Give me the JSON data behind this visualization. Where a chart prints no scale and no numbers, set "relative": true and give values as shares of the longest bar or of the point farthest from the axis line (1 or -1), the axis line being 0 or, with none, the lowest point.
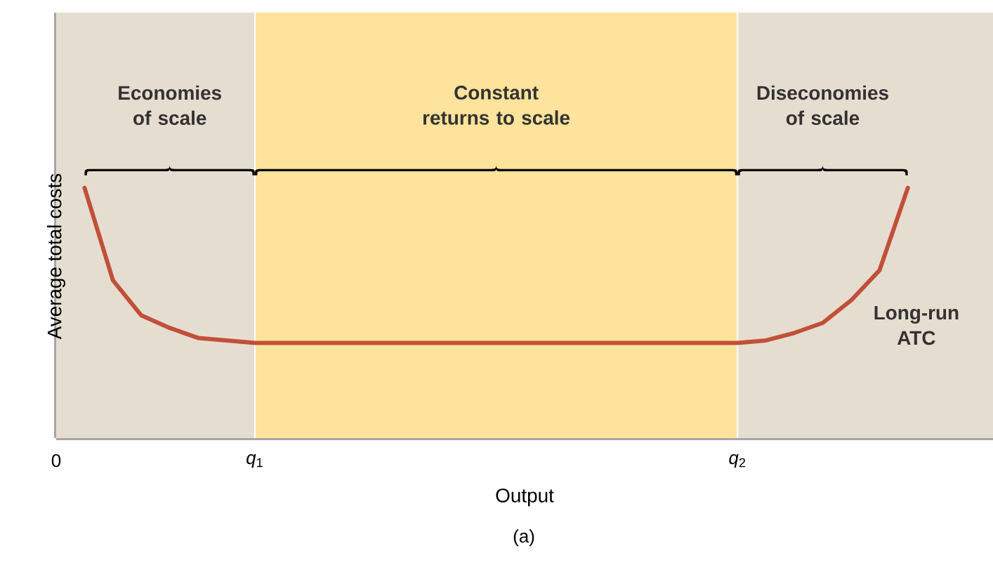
{
  "chart_data": {
    "type": "line",
    "relative": true,
    "xlabel": "Output",
    "ylabel": "Average total costs",
    "annotations": [
      "Economies of scale",
      "Constant returns to scale",
      "Diseconomies of scale",
      "(a)"
    ],
    "categories": [
      "0",
      null,
      null,
      null,
      null,
      null,
      null,
      "*q*$_{1}$",
      null,
      null,
      null,
      null,
      null,
      null,
      null,
      null,
      null,
      null,
      null,
      null,
      null,
      null,
      null,
      null,
      "*q*$_{2}$",
      null,
      null,
      null,
      null,
      null,
      null,
      null,
      null,
      null
    ],
    "series": [
      {
        "name": "Long-run ATC",
        "color": "#c0503a",
        "values": [
          null,
          1.0,
          0.63,
          0.49,
          0.44,
          0.4,
          0.39,
          0.38,
          0.38,
          0.38,
          0.38,
          0.38,
          0.38,
          0.38,
          0.38,
          0.38,
          0.38,
          0.38,
          0.38,
          0.38,
          0.38,
          0.38,
          0.38,
          0.38,
          0.38,
          0.39,
          0.42,
          0.46,
          0.55,
          0.67,
          1.0,
          null,
          null,
          null
        ]
      }
    ],
    "marker": "none",
    "line_style": "solid"
  }
}
